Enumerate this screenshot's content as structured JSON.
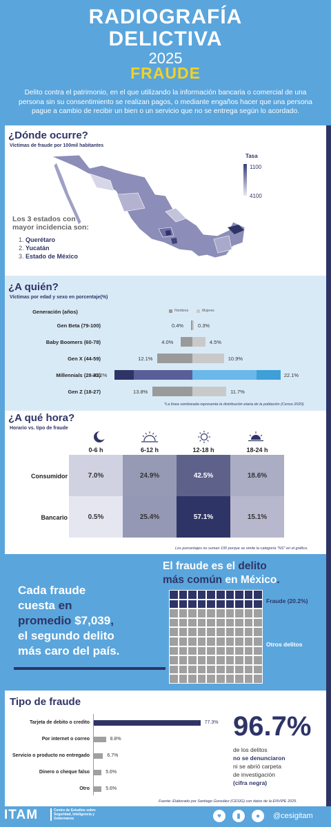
{
  "header": {
    "title_line1": "RADIOGRAFÍA",
    "title_line2": "DELICTIVA",
    "year": "2025",
    "subject": "FRAUDE",
    "description": "Delito contra el patrimonio, en el que utilizando la información bancaria o comercial de una persona sin su consentimiento se realizan pagos, o mediante engaños hacer que una persona pague a cambio de recibir un bien o un servicio que no se entrega según lo acordado."
  },
  "where": {
    "title": "¿Dónde ocurre?",
    "subtitle": "Víctimas de fraude por 100mil habitantes",
    "legend_title": "Tasa",
    "legend_high": "1100",
    "legend_low": "4100",
    "top3_heading_1": "Los 3 estados con",
    "top3_heading_2": "mayor incidencia son:",
    "top3": [
      {
        "n": "1.",
        "state": "Querétaro"
      },
      {
        "n": "2.",
        "state": "Yucatán"
      },
      {
        "n": "3.",
        "state": "Estado de México"
      }
    ]
  },
  "who": {
    "title": "¿A quién?",
    "subtitle": "Víctimas por edad y sexo en porcentaje(%)",
    "gen_header": "Generación (años)",
    "legend_men": "Hombres",
    "legend_women": "Mujeres",
    "color_men": "#9a9a9a",
    "color_women": "#c9c9c9",
    "rows": [
      {
        "label": "Gen Beta (79-100)",
        "men": 0.4,
        "women": 0.3,
        "men_txt": "0.4%",
        "women_txt": "0.3%"
      },
      {
        "label": "Baby Boomers (60-78)",
        "men": 4.0,
        "women": 4.5,
        "men_txt": "4.0%",
        "women_txt": "4.5%"
      },
      {
        "label": "Gen X (44-59)",
        "men": 12.1,
        "women": 10.9,
        "men_txt": "12.1%",
        "women_txt": "10.9%"
      },
      {
        "label": "Millennials (28-43)",
        "men": 20.2,
        "women": 22.1,
        "men_txt": "20.2%",
        "women_txt": "22.1%"
      },
      {
        "label": "Gen Z (18-27)",
        "men": 13.8,
        "women": 11.7,
        "men_txt": "13.8%",
        "women_txt": "11.7%"
      }
    ],
    "note": "*La línea sombreada representa la distribución etaria de la población (Censo 2020)."
  },
  "when": {
    "title": "¿A qué hora?",
    "subtitle": "Horario vs. tipo de fraude",
    "columns": [
      {
        "label": "0-6 h",
        "icon": "moon-icon"
      },
      {
        "label": "6-12 h",
        "icon": "sunrise-icon"
      },
      {
        "label": "12-18 h",
        "icon": "sun-icon"
      },
      {
        "label": "18-24 h",
        "icon": "sunset-icon"
      }
    ],
    "rows": [
      {
        "label": "Consumidor",
        "values": [
          "7.0%",
          "24.9%",
          "42.5%",
          "18.6%"
        ],
        "nums": [
          7.0,
          24.9,
          42.5,
          18.6
        ]
      },
      {
        "label": "Bancario",
        "values": [
          "0.5%",
          "25.4%",
          "57.1%",
          "15.1%"
        ],
        "nums": [
          0.5,
          25.4,
          57.1,
          15.1
        ]
      }
    ],
    "note": "Los porcentajes no suman 100 porque se omite la categoría \"NS\" en el gráfico."
  },
  "cost": {
    "line1": "Cada fraude",
    "line2": "cuesta",
    "line2b": "en",
    "line3": "promedio",
    "amount": "$7,039",
    "line3c": ",",
    "line4": "el segundo delito",
    "line5": "más caro del país."
  },
  "common": {
    "p1": "El fraude es el",
    "p2": "delito",
    "p3": "más común",
    "p4": "en México",
    "p5": ".",
    "fraud_label": "Fraude (20.2%)",
    "fraud_pct": 20.2,
    "other_label": "Otros delitos"
  },
  "types": {
    "title": "Tipo de fraude",
    "items": [
      {
        "label": "Tarjeta de debito o credito",
        "value": 77.3,
        "txt": "77.3%"
      },
      {
        "label": "Por internet o correo",
        "value": 8.8,
        "txt": "8.8%"
      },
      {
        "label": "Servicio o producto no entregado",
        "value": 6.7,
        "txt": "6.7%"
      },
      {
        "label": "Dinero o cheque falso",
        "value": 5.6,
        "txt": "5.6%"
      },
      {
        "label": "Otro",
        "value": 5.6,
        "txt": "5.6%"
      }
    ]
  },
  "unreported": {
    "big": "96.7%",
    "l1": "de los delitos",
    "l2": "no se denunciaron",
    "l3": "ni se abrió carpeta",
    "l4": "de investigación",
    "l5": "(cifra negra)"
  },
  "source": "Fuente: Elaborado por Santiago González (CESIG) con datos de la ENVIPE 2025.",
  "footer": {
    "logo": "ITAM",
    "org": "Centro de Estudios sobre Seguridad, Inteligencia y Gobernanza",
    "handle": "@cesigitam"
  },
  "chart_data": [
    {
      "type": "bar",
      "title": "Víctimas por edad y sexo en porcentaje(%)",
      "categories": [
        "Gen Beta (79-100)",
        "Baby Boomers (60-78)",
        "Gen X (44-59)",
        "Millennials (28-43)",
        "Gen Z (18-27)"
      ],
      "series": [
        {
          "name": "Hombres",
          "values": [
            0.4,
            4.0,
            12.1,
            20.2,
            13.8
          ]
        },
        {
          "name": "Mujeres",
          "values": [
            0.3,
            4.5,
            10.9,
            22.1,
            11.7
          ]
        }
      ]
    },
    {
      "type": "heatmap",
      "title": "Horario vs. tipo de fraude",
      "x": [
        "0-6 h",
        "6-12 h",
        "12-18 h",
        "18-24 h"
      ],
      "y": [
        "Consumidor",
        "Bancario"
      ],
      "values": [
        [
          7.0,
          24.9,
          42.5,
          18.6
        ],
        [
          0.5,
          25.4,
          57.1,
          15.1
        ]
      ]
    },
    {
      "type": "bar",
      "title": "Tipo de fraude",
      "categories": [
        "Tarjeta de debito o credito",
        "Por internet o correo",
        "Servicio o producto no entregado",
        "Dinero o cheque falso",
        "Otro"
      ],
      "values": [
        77.3,
        8.8,
        6.7,
        5.6,
        5.6
      ]
    }
  ]
}
